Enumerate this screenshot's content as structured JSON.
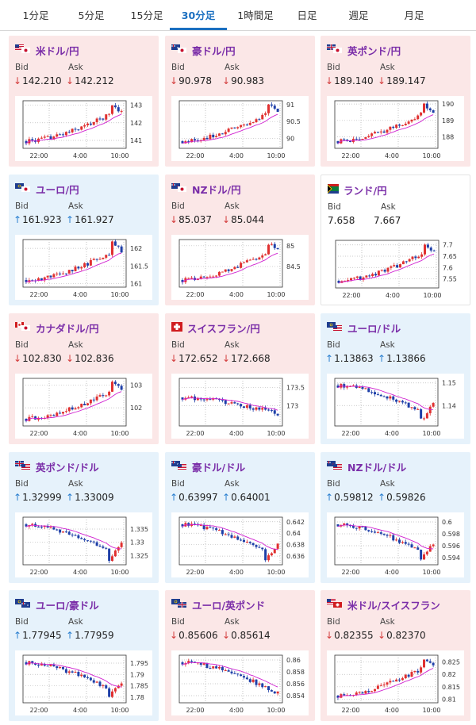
{
  "tabs": [
    "1分足",
    "5分足",
    "15分足",
    "30分足",
    "1時間足",
    "日足",
    "週足",
    "月足"
  ],
  "active_tab": "30分足",
  "colors": {
    "up": "#e03030",
    "down": "#1e3fa8",
    "ma": "#d020d0",
    "down_card_bg": "#fbe7e7",
    "up_card_bg": "#e6f2fb",
    "title": "#7a2da8",
    "accent": "#1a6fc0"
  },
  "common": {
    "bid_label": "Bid",
    "ask_label": "Ask",
    "xticks": [
      "22:00",
      "4:00",
      "10:00"
    ],
    "arrow_up": "↑",
    "arrow_down": "↓"
  },
  "pairs": [
    {
      "name": "米ドル/円",
      "flag": "us-jp-flag-icon",
      "dir": "down",
      "bid": "142.210",
      "ask": "142.212",
      "yticks": [
        "143",
        "142",
        "141"
      ],
      "ylim": [
        140.55,
        143.25
      ]
    },
    {
      "name": "豪ドル/円",
      "flag": "au-jp-flag-icon",
      "dir": "down",
      "bid": "90.978",
      "ask": "90.983",
      "yticks": [
        "91",
        "90.5",
        "90"
      ],
      "ylim": [
        89.7,
        91.12
      ]
    },
    {
      "name": "英ポンド/円",
      "flag": "gb-jp-flag-icon",
      "dir": "down",
      "bid": "189.140",
      "ask": "189.147",
      "yticks": [
        "190",
        "189",
        "188"
      ],
      "ylim": [
        187.3,
        190.2
      ]
    },
    {
      "name": "ユーロ/円",
      "flag": "eu-jp-flag-icon",
      "dir": "up",
      "bid": "161.923",
      "ask": "161.927",
      "yticks": [
        "162",
        "161.5",
        "161"
      ],
      "ylim": [
        160.9,
        162.25
      ]
    },
    {
      "name": "NZドル/円",
      "flag": "nz-jp-flag-icon",
      "dir": "down",
      "bid": "85.037",
      "ask": "85.044",
      "yticks": [
        "85",
        "84.5"
      ],
      "ylim": [
        84.0,
        85.15
      ]
    },
    {
      "name": "ランド/円",
      "flag": "za-jp-flag-icon",
      "dir": "neutral",
      "bid": "7.658",
      "ask": "7.667",
      "yticks": [
        "7.7",
        "7.65",
        "7.6",
        "7.55"
      ],
      "ylim": [
        7.51,
        7.72
      ]
    },
    {
      "name": "カナダドル/円",
      "flag": "ca-jp-flag-icon",
      "dir": "down",
      "bid": "102.830",
      "ask": "102.836",
      "yticks": [
        "103",
        "102"
      ],
      "ylim": [
        101.2,
        103.3
      ]
    },
    {
      "name": "スイスフラン/円",
      "flag": "ch-jp-flag-icon",
      "dir": "down",
      "bid": "172.652",
      "ask": "172.668",
      "yticks": [
        "173.5",
        "173"
      ],
      "ylim": [
        172.45,
        173.75
      ]
    },
    {
      "name": "ユーロ/ドル",
      "flag": "eu-us-flag-icon",
      "dir": "up",
      "bid": "1.13863",
      "ask": "1.13866",
      "yticks": [
        "1.15",
        "1.14"
      ],
      "ylim": [
        1.131,
        1.152
      ]
    },
    {
      "name": "英ポンド/ドル",
      "flag": "gb-us-flag-icon",
      "dir": "up",
      "bid": "1.32999",
      "ask": "1.33009",
      "yticks": [
        "1.335",
        "1.33",
        "1.325"
      ],
      "ylim": [
        1.3215,
        1.3395
      ]
    },
    {
      "name": "豪ドル/ドル",
      "flag": "au-us-flag-icon",
      "dir": "up",
      "bid": "0.63997",
      "ask": "0.64001",
      "yticks": [
        "0.642",
        "0.64",
        "0.638",
        "0.636"
      ],
      "ylim": [
        0.6345,
        0.6428
      ]
    },
    {
      "name": "NZドル/ドル",
      "flag": "nz-us-flag-icon",
      "dir": "up",
      "bid": "0.59812",
      "ask": "0.59826",
      "yticks": [
        "0.6",
        "0.598",
        "0.596",
        "0.594"
      ],
      "ylim": [
        0.5928,
        0.6008
      ]
    },
    {
      "name": "ユーロ/豪ドル",
      "flag": "eu-au-flag-icon",
      "dir": "up",
      "bid": "1.77945",
      "ask": "1.77959",
      "yticks": [
        "1.795",
        "1.79",
        "1.785",
        "1.78"
      ],
      "ylim": [
        1.7775,
        1.7985
      ]
    },
    {
      "name": "ユーロ/英ポンド",
      "flag": "eu-gb-flag-icon",
      "dir": "down",
      "bid": "0.85606",
      "ask": "0.85614",
      "yticks": [
        "0.86",
        "0.858",
        "0.856",
        "0.854"
      ],
      "ylim": [
        0.8528,
        0.8608
      ]
    },
    {
      "name": "米ドル/スイスフラン",
      "flag": "us-ch-flag-icon",
      "dir": "down",
      "bid": "0.82355",
      "ask": "0.82370",
      "yticks": [
        "0.825",
        "0.82",
        "0.815",
        "0.81"
      ],
      "ylim": [
        0.8085,
        0.8278
      ]
    }
  ]
}
